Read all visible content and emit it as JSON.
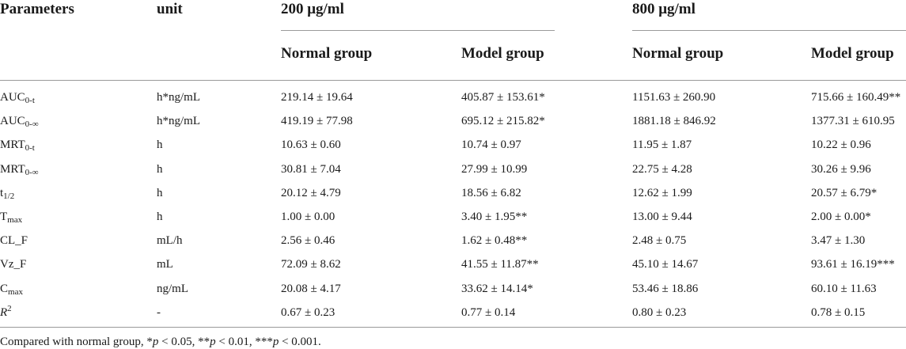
{
  "header": {
    "parameters": "Parameters",
    "unit": "unit",
    "dose1": "200 μg/ml",
    "dose2": "800 μg/ml",
    "normal": "Normal group",
    "model": "Model group"
  },
  "rows": [
    {
      "param_base": "AUC",
      "param_sub": "0-t",
      "param_sup": "",
      "unit": "h*ng/mL",
      "v1": "219.14 ± 19.64",
      "v2": "405.87 ± 153.61*",
      "v3": "1151.63 ± 260.90",
      "v4": "715.66 ± 160.49**"
    },
    {
      "param_base": "AUC",
      "param_sub": "0-∞",
      "param_sup": "",
      "unit": "h*ng/mL",
      "v1": "419.19 ± 77.98",
      "v2": "695.12 ± 215.82*",
      "v3": "1881.18 ± 846.92",
      "v4": "1377.31 ± 610.95"
    },
    {
      "param_base": "MRT",
      "param_sub": "0-t",
      "param_sup": "",
      "unit": "h",
      "v1": "10.63 ± 0.60",
      "v2": "10.74 ± 0.97",
      "v3": "11.95 ± 1.87",
      "v4": "10.22 ± 0.96"
    },
    {
      "param_base": "MRT",
      "param_sub": "0-∞",
      "param_sup": "",
      "unit": "h",
      "v1": "30.81 ± 7.04",
      "v2": "27.99 ± 10.99",
      "v3": "22.75 ± 4.28",
      "v4": "30.26 ± 9.96"
    },
    {
      "param_base": "t",
      "param_sub": "1/2",
      "param_sup": "",
      "unit": "h",
      "v1": "20.12 ± 4.79",
      "v2": "18.56 ± 6.82",
      "v3": "12.62 ± 1.99",
      "v4": "20.57 ± 6.79*"
    },
    {
      "param_base": "T",
      "param_sub": "max",
      "param_sup": "",
      "unit": "h",
      "v1": "1.00 ± 0.00",
      "v2": "3.40 ± 1.95**",
      "v3": "13.00 ± 9.44",
      "v4": "2.00 ± 0.00*"
    },
    {
      "param_base": "CL_F",
      "param_sub": "",
      "param_sup": "",
      "unit": "mL/h",
      "v1": "2.56 ± 0.46",
      "v2": "1.62 ± 0.48**",
      "v3": "2.48 ± 0.75",
      "v4": "3.47 ± 1.30"
    },
    {
      "param_base": "Vz_F",
      "param_sub": "",
      "param_sup": "",
      "unit": "mL",
      "v1": "72.09 ± 8.62",
      "v2": "41.55 ± 11.87**",
      "v3": "45.10 ± 14.67",
      "v4": "93.61 ± 16.19***"
    },
    {
      "param_base": "C",
      "param_sub": "max",
      "param_sup": "",
      "unit": "ng/mL",
      "v1": "20.08 ± 4.17",
      "v2": "33.62 ± 14.14*",
      "v3": "53.46 ± 18.86",
      "v4": "60.10 ± 11.63"
    },
    {
      "param_base": "R",
      "param_sub": "",
      "param_sup": "2",
      "unit": "-",
      "v1": "0.67 ± 0.23",
      "v2": "0.77 ± 0.14",
      "v3": "0.80 ± 0.23",
      "v4": "0.78 ± 0.15"
    }
  ],
  "footnote": {
    "lead": "Compared with normal group, ",
    "s1": "*",
    "p1": "p",
    "t1": " < 0.05, ",
    "s2": "**",
    "p2": "p",
    "t2": " < 0.01, ",
    "s3": "***",
    "p3": "p",
    "t3": " < 0.001."
  }
}
